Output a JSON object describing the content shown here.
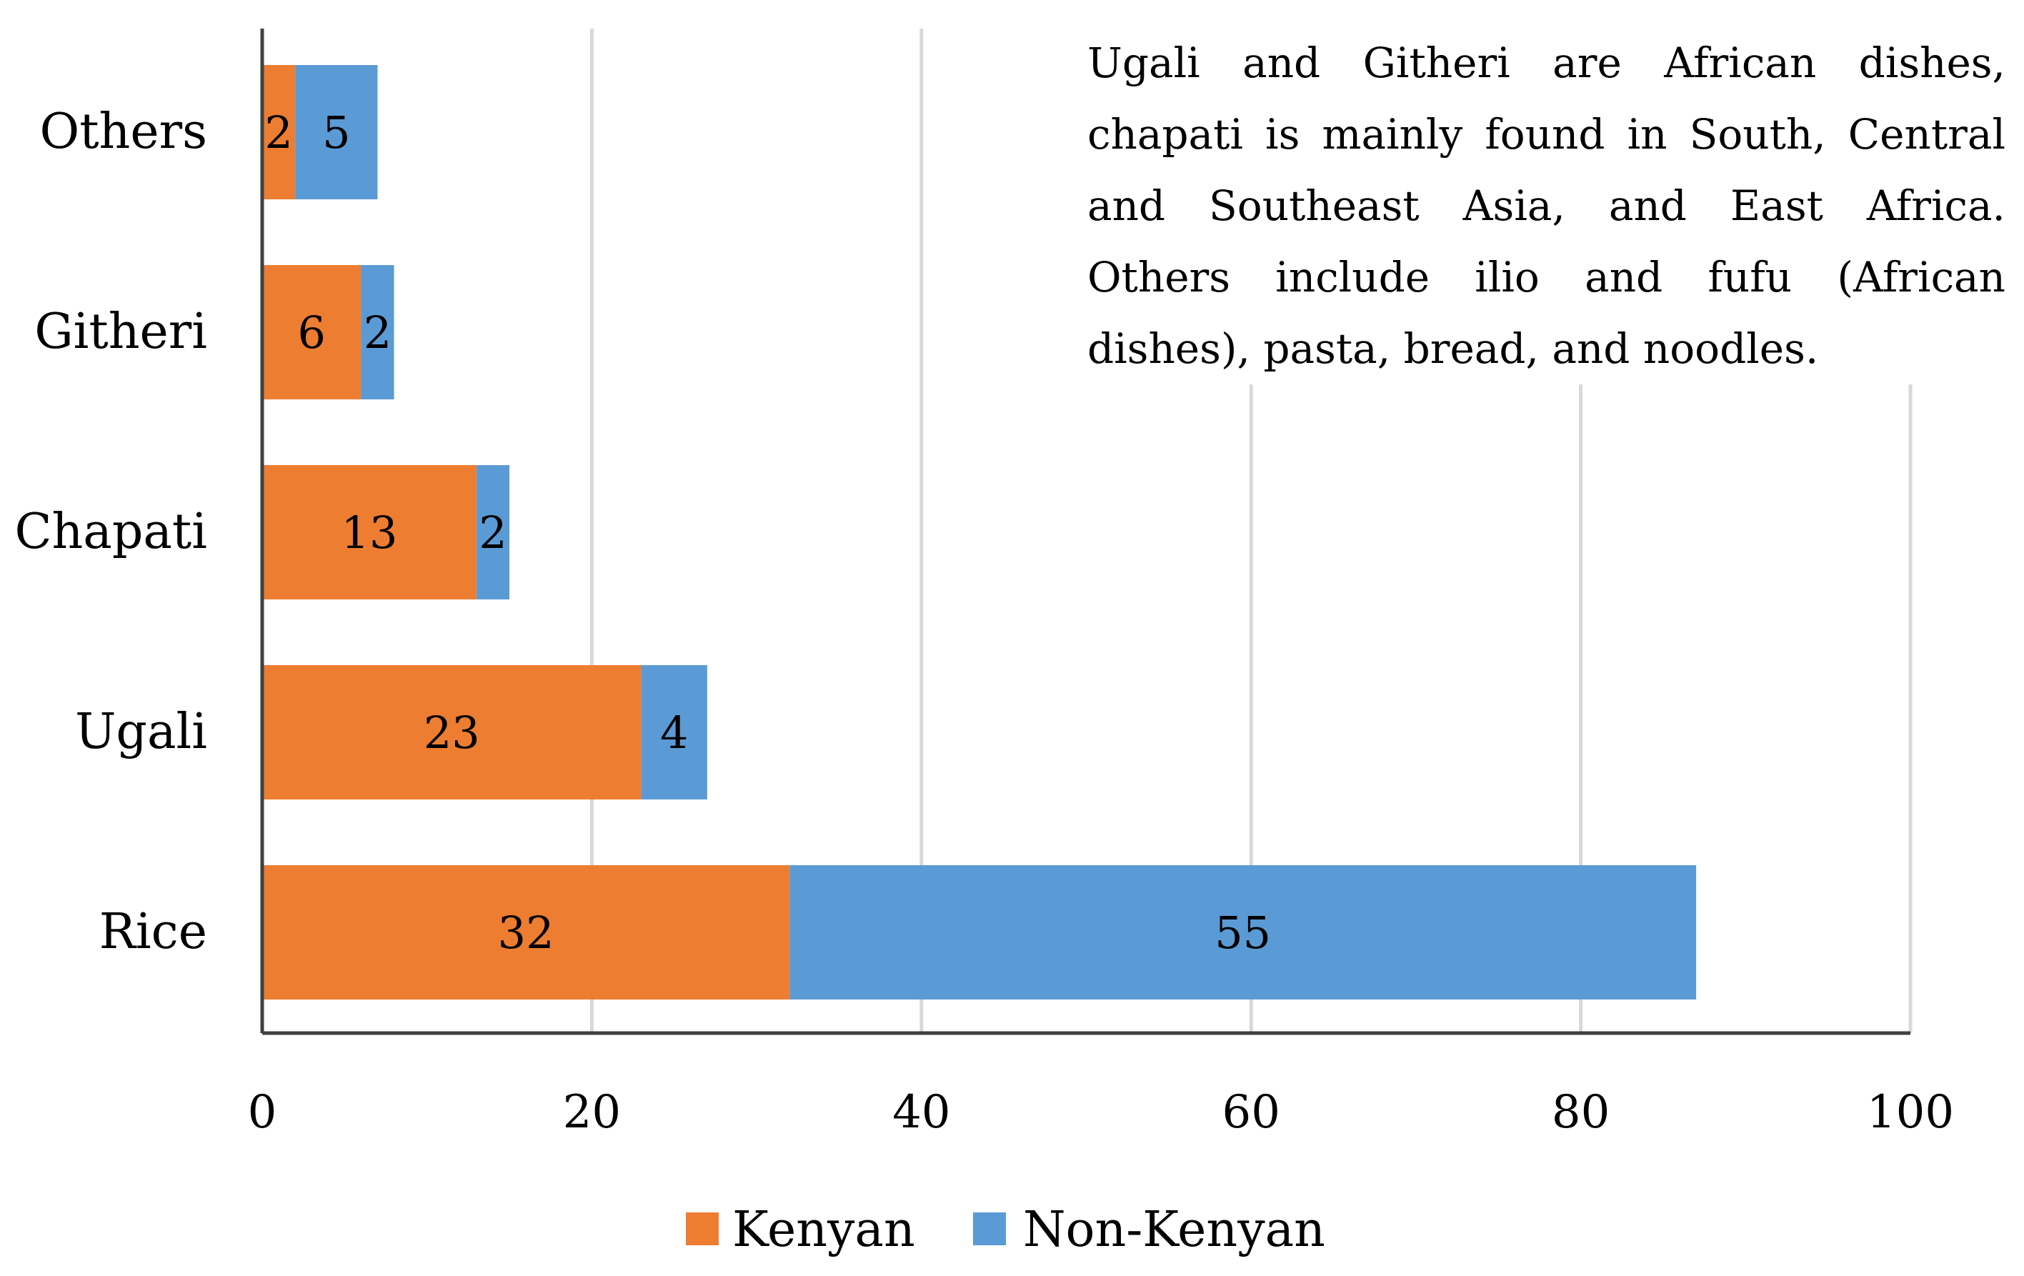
{
  "chart_data": {
    "type": "bar",
    "orientation": "horizontal",
    "stacked": true,
    "categories": [
      "Others",
      "Githeri",
      "Chapati",
      "Ugali",
      "Rice"
    ],
    "series": [
      {
        "name": "Kenyan",
        "color": "#ED7D31",
        "values": [
          2,
          6,
          13,
          23,
          32
        ]
      },
      {
        "name": "Non-Kenyan",
        "color": "#5B9BD5",
        "values": [
          5,
          2,
          2,
          4,
          55
        ]
      }
    ],
    "xlim": [
      0,
      100
    ],
    "xticks": [
      0,
      20,
      40,
      60,
      80,
      100
    ],
    "grid": true,
    "legend_position": "bottom",
    "annotation": "Ugali and Githeri are African dishes, chapati is mainly found in South, Central and Southeast Asia, and East Africa. Others include ilio and fufu (African dishes), pasta, bread, and noodles."
  }
}
